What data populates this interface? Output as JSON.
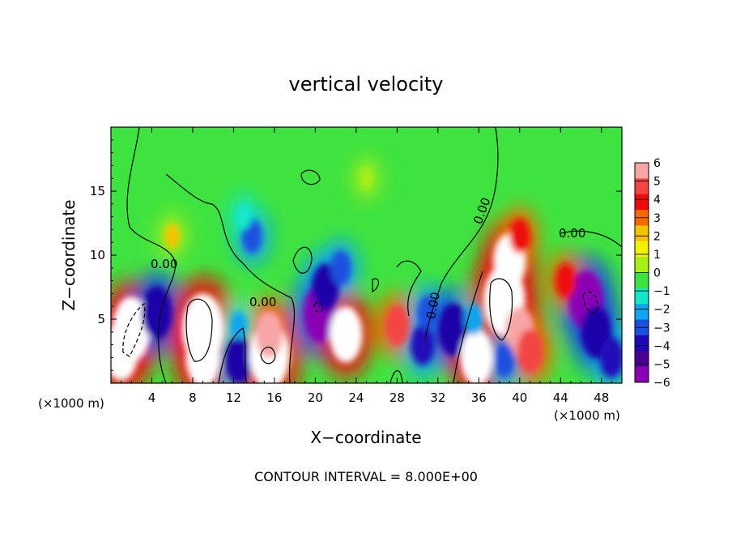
{
  "chart_data": {
    "type": "heatmap",
    "title": "vertical velocity",
    "xlabel": "X−coordinate",
    "ylabel": "Z−coordinate",
    "x_unit_left": "(×1000 m)",
    "x_unit_right": "(×1000 m)",
    "footer": "CONTOUR INTERVAL = 8.000E+00",
    "xlim": [
      0,
      50
    ],
    "ylim": [
      0,
      20
    ],
    "x_ticks": [
      4,
      8,
      12,
      16,
      20,
      24,
      28,
      32,
      36,
      40,
      44,
      48
    ],
    "y_ticks": [
      5,
      10,
      15
    ],
    "x_tick_labels": [
      "4",
      "8",
      "12",
      "16",
      "20",
      "24",
      "28",
      "32",
      "36",
      "40",
      "44",
      "48"
    ],
    "y_tick_labels": [
      "5",
      "10",
      "15"
    ],
    "colorbar": {
      "levels": [
        6,
        5,
        4,
        3,
        2,
        1,
        0,
        -1,
        -2,
        -3,
        -4,
        -5,
        -6
      ],
      "labels": [
        "6",
        "5",
        "4",
        "3",
        "2",
        "1",
        "0",
        "−1",
        "−2",
        "−3",
        "−4",
        "−5",
        "−6"
      ],
      "colors": [
        "#f7a6a6",
        "#f44545",
        "#ef0a0a",
        "#f56a00",
        "#f5c400",
        "#f2f200",
        "#a8ef14",
        "#3fe33f",
        "#12e8c8",
        "#11a6ef",
        "#1a50e0",
        "#2008b8",
        "#4a0090",
        "#8a00b5"
      ]
    },
    "contour_labels": [
      "0.00",
      "0.00",
      "0.00",
      "0.00",
      "0.00"
    ],
    "field_cells": [
      {
        "x": 2.0,
        "z": 4.2,
        "w": 8.0
      },
      {
        "x": 1.0,
        "z": 2.5,
        "w": 7.0
      },
      {
        "x": 4.5,
        "z": 5.5,
        "w": -6.0
      },
      {
        "x": 9.0,
        "z": 4.2,
        "w": 9.0
      },
      {
        "x": 9.0,
        "z": 2.0,
        "w": 7.0
      },
      {
        "x": 12.5,
        "z": 1.8,
        "w": -5.0
      },
      {
        "x": 15.5,
        "z": 2.2,
        "w": 8.5
      },
      {
        "x": 15.5,
        "z": 3.8,
        "w": 5.0
      },
      {
        "x": 12.5,
        "z": 4.5,
        "w": -2.0
      },
      {
        "x": 13.8,
        "z": 11.5,
        "w": -3.0
      },
      {
        "x": 13.0,
        "z": 13.0,
        "w": -1.5
      },
      {
        "x": 20.5,
        "z": 5.5,
        "w": -7.0
      },
      {
        "x": 21.0,
        "z": 7.5,
        "w": -5.0
      },
      {
        "x": 23.0,
        "z": 3.8,
        "w": 6.5
      },
      {
        "x": 22.5,
        "z": 9.0,
        "w": -3.0
      },
      {
        "x": 28.0,
        "z": 4.5,
        "w": 4.0
      },
      {
        "x": 30.5,
        "z": 3.0,
        "w": -4.0
      },
      {
        "x": 31.0,
        "z": 5.5,
        "w": -3.0
      },
      {
        "x": 33.5,
        "z": 4.2,
        "w": -6.0
      },
      {
        "x": 35.8,
        "z": 2.0,
        "w": 6.5
      },
      {
        "x": 35.5,
        "z": 5.0,
        "w": -2.5
      },
      {
        "x": 38.5,
        "z": 6.5,
        "w": 9.0
      },
      {
        "x": 39.0,
        "z": 9.5,
        "w": 6.5
      },
      {
        "x": 40.0,
        "z": 4.0,
        "w": 5.5
      },
      {
        "x": 41.0,
        "z": 2.5,
        "w": 4.5
      },
      {
        "x": 38.5,
        "z": 1.8,
        "w": -3.0
      },
      {
        "x": 40.0,
        "z": 11.5,
        "w": 3.0
      },
      {
        "x": 46.5,
        "z": 6.5,
        "w": -7.0
      },
      {
        "x": 47.5,
        "z": 4.0,
        "w": -6.0
      },
      {
        "x": 49.0,
        "z": 2.0,
        "w": -4.0
      },
      {
        "x": 44.5,
        "z": 8.0,
        "w": 3.0
      },
      {
        "x": 25.0,
        "z": 16.0,
        "w": 0.8
      },
      {
        "x": 6.0,
        "z": 11.5,
        "w": 1.5
      }
    ]
  }
}
